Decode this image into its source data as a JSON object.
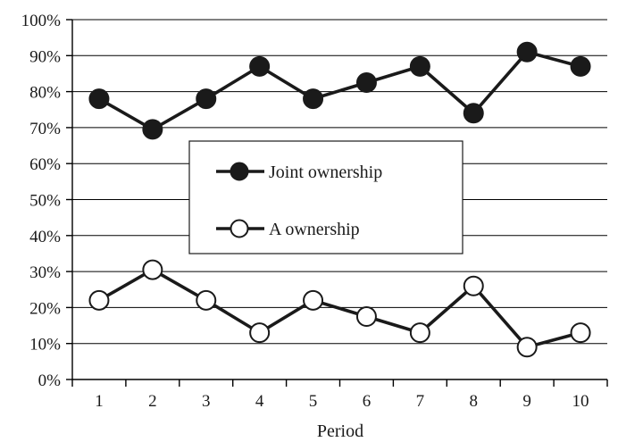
{
  "chart_data": {
    "type": "line",
    "title": "",
    "xlabel": "Period",
    "ylabel": "",
    "categories": [
      "1",
      "2",
      "3",
      "4",
      "5",
      "6",
      "7",
      "8",
      "9",
      "10"
    ],
    "y_tick_labels": [
      "0%",
      "10%",
      "20%",
      "30%",
      "40%",
      "50%",
      "60%",
      "70%",
      "80%",
      "90%",
      "100%"
    ],
    "ylim": [
      0,
      100
    ],
    "y_unit": "%",
    "grid": true,
    "legend_position": "center-left",
    "series": [
      {
        "name": "Joint ownership",
        "values": [
          78,
          69.5,
          78,
          87,
          78,
          82.5,
          87,
          74,
          91,
          87
        ],
        "marker": "filled-circle",
        "color": "#1a1a1a"
      },
      {
        "name": "A ownership",
        "values": [
          22,
          30.5,
          22,
          13,
          22,
          17.5,
          13,
          26,
          9,
          13
        ],
        "marker": "open-circle",
        "color": "#1a1a1a"
      }
    ]
  }
}
